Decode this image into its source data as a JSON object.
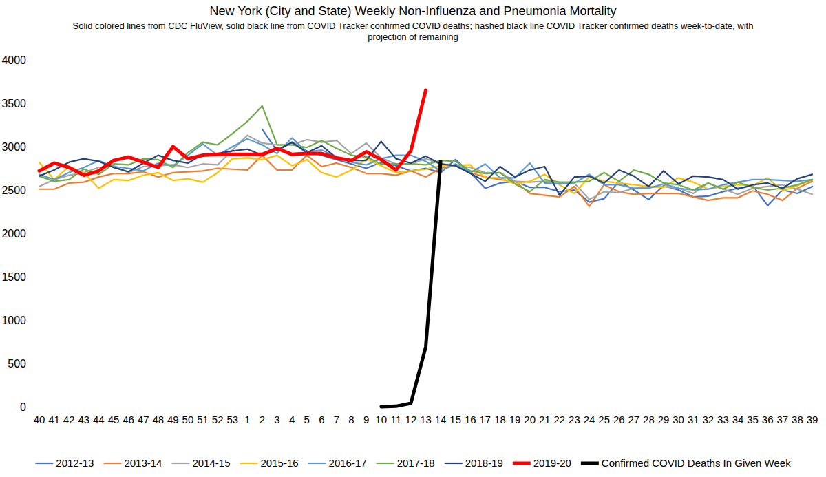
{
  "chart_data": {
    "type": "line",
    "title": "New York (City and State) Weekly Non-Influenza and Pneumonia Mortality",
    "subtitle": "Solid colored lines from CDC FluView, solid black line from COVID Tracker confirmed COVID deaths; hashed black line COVID Tracker confirmed deaths week-to-date, with projection of remaining",
    "categories": [
      "40",
      "41",
      "42",
      "43",
      "44",
      "45",
      "46",
      "47",
      "48",
      "49",
      "50",
      "51",
      "52",
      "53",
      "1",
      "2",
      "3",
      "4",
      "5",
      "6",
      "7",
      "8",
      "9",
      "10",
      "11",
      "12",
      "13",
      "14",
      "15",
      "16",
      "17",
      "18",
      "19",
      "20",
      "21",
      "22",
      "23",
      "24",
      "25",
      "26",
      "27",
      "28",
      "29",
      "30",
      "31",
      "32",
      "33",
      "34",
      "35",
      "36",
      "37",
      "38",
      "39"
    ],
    "ylim": [
      0,
      4000
    ],
    "yticks": [
      0,
      500,
      1000,
      1500,
      2000,
      2500,
      3000,
      3500,
      4000
    ],
    "grid": false,
    "legend": "bottom",
    "series": [
      {
        "name": "2012-13",
        "color": "#4472c4",
        "line_style": "solid",
        "values": [
          null,
          null,
          null,
          null,
          null,
          null,
          null,
          null,
          null,
          null,
          null,
          null,
          null,
          null,
          null,
          3200,
          2950,
          3050,
          2950,
          2900,
          2850,
          2800,
          2750,
          2820,
          2780,
          2720,
          2750,
          2700,
          2850,
          2700,
          2520,
          2580,
          2600,
          2530,
          2530,
          2480,
          2500,
          2360,
          2400,
          2600,
          2500,
          2390,
          2550,
          2500,
          2420,
          2430,
          2480,
          2520,
          2550,
          2320,
          2500,
          2460,
          2540
        ]
      },
      {
        "name": "2013-14",
        "color": "#ed7d31",
        "line_style": "solid",
        "values": [
          2510,
          2510,
          2580,
          2590,
          2650,
          2690,
          2690,
          2710,
          2650,
          2700,
          2710,
          2720,
          2750,
          2740,
          2730,
          2900,
          2730,
          2730,
          2900,
          2770,
          2810,
          2760,
          2690,
          2690,
          2670,
          2720,
          2650,
          2750,
          2780,
          2700,
          2650,
          2620,
          2600,
          2460,
          2440,
          2420,
          2540,
          2310,
          2560,
          2480,
          2450,
          2460,
          2460,
          2460,
          2420,
          2380,
          2410,
          2410,
          2490,
          2450,
          2380,
          2520,
          2600
        ]
      },
      {
        "name": "2014-15",
        "color": "#a5a5a5",
        "line_style": "solid",
        "values": [
          2540,
          2620,
          2670,
          2700,
          2760,
          2780,
          2700,
          2770,
          2780,
          2790,
          2760,
          2800,
          2790,
          2960,
          3130,
          3040,
          3020,
          3020,
          3080,
          3050,
          3070,
          2920,
          3040,
          2870,
          2800,
          2800,
          2860,
          2800,
          2780,
          2760,
          2700,
          2700,
          2600,
          2590,
          2600,
          2580,
          2580,
          2390,
          2480,
          2470,
          2520,
          2530,
          2540,
          2520,
          2460,
          2580,
          2510,
          2450,
          2520,
          2540,
          2560,
          2510,
          2450
        ]
      },
      {
        "name": "2015-16",
        "color": "#ffc000",
        "line_style": "solid",
        "values": [
          2820,
          2620,
          2770,
          2700,
          2520,
          2620,
          2610,
          2670,
          2700,
          2610,
          2630,
          2590,
          2700,
          2860,
          2870,
          2850,
          2900,
          2780,
          2850,
          2700,
          2650,
          2730,
          2860,
          2780,
          2700,
          2720,
          2740,
          2780,
          2780,
          2790,
          2640,
          2640,
          2570,
          2600,
          2680,
          2560,
          2460,
          2650,
          2600,
          2580,
          2560,
          2540,
          2530,
          2640,
          2590,
          2510,
          2540,
          2560,
          2550,
          2640,
          2490,
          2550,
          2620
        ]
      },
      {
        "name": "2016-17",
        "color": "#5b9bd5",
        "line_style": "solid",
        "values": [
          2680,
          2620,
          2700,
          2760,
          2840,
          2770,
          2750,
          2720,
          2810,
          2780,
          2900,
          3030,
          2900,
          3000,
          3090,
          3020,
          2920,
          3100,
          2940,
          2960,
          2880,
          2820,
          2790,
          2860,
          2900,
          2900,
          2830,
          2720,
          2800,
          2700,
          2800,
          2640,
          2640,
          2810,
          2580,
          2570,
          2580,
          2680,
          2560,
          2560,
          2520,
          2520,
          2570,
          2520,
          2500,
          2510,
          2560,
          2590,
          2620,
          2620,
          2610,
          2600,
          2620
        ]
      },
      {
        "name": "2017-18",
        "color": "#70ad47",
        "line_style": "solid",
        "values": [
          2660,
          2600,
          2620,
          2740,
          2680,
          2800,
          2790,
          2860,
          2850,
          2760,
          2930,
          3050,
          3020,
          3150,
          3290,
          3470,
          3020,
          3020,
          2990,
          3070,
          2980,
          2900,
          2880,
          2800,
          2800,
          2800,
          2790,
          2840,
          2830,
          2720,
          2690,
          2700,
          2570,
          2480,
          2620,
          2590,
          2590,
          2600,
          2700,
          2600,
          2730,
          2680,
          2580,
          2560,
          2500,
          2580,
          2510,
          2590,
          2530,
          2500,
          2520,
          2560,
          2620
        ]
      },
      {
        "name": "2018-19",
        "color": "#264478",
        "line_style": "solid",
        "values": [
          2660,
          2730,
          2820,
          2860,
          2830,
          2760,
          2710,
          2810,
          2900,
          2840,
          2810,
          2910,
          2920,
          2950,
          2970,
          2900,
          2960,
          3050,
          2930,
          3010,
          2870,
          2840,
          2840,
          3060,
          2860,
          2810,
          2890,
          2800,
          2780,
          2690,
          2600,
          2770,
          2650,
          2730,
          2770,
          2440,
          2650,
          2660,
          2580,
          2730,
          2660,
          2540,
          2720,
          2570,
          2660,
          2650,
          2620,
          2510,
          2560,
          2580,
          2520,
          2630,
          2680
        ]
      },
      {
        "name": "2019-20",
        "color": "#ff0000",
        "line_style": "bold",
        "values": [
          2720,
          2810,
          2760,
          2670,
          2720,
          2840,
          2880,
          2820,
          2760,
          3000,
          2860,
          2900,
          2910,
          2910,
          2910,
          2910,
          2980,
          2910,
          2920,
          2920,
          2870,
          2840,
          2940,
          2850,
          2730,
          2950,
          3650,
          null,
          null,
          null,
          null,
          null,
          null,
          null,
          null,
          null,
          null,
          null,
          null,
          null,
          null,
          null,
          null,
          null,
          null,
          null,
          null,
          null,
          null,
          null,
          null,
          null,
          null
        ]
      },
      {
        "name": "Confirmed COVID Deaths In Given Week",
        "color": "#000000",
        "line_style": "bold",
        "values": [
          null,
          null,
          null,
          null,
          null,
          null,
          null,
          null,
          null,
          null,
          null,
          null,
          null,
          null,
          null,
          null,
          null,
          null,
          null,
          null,
          null,
          null,
          null,
          0,
          5,
          40,
          690,
          2830,
          null,
          null,
          null,
          null,
          null,
          null,
          null,
          null,
          null,
          null,
          null,
          null,
          null,
          null,
          null,
          null,
          null,
          null,
          null,
          null,
          null,
          null,
          null,
          null,
          null
        ]
      }
    ]
  }
}
